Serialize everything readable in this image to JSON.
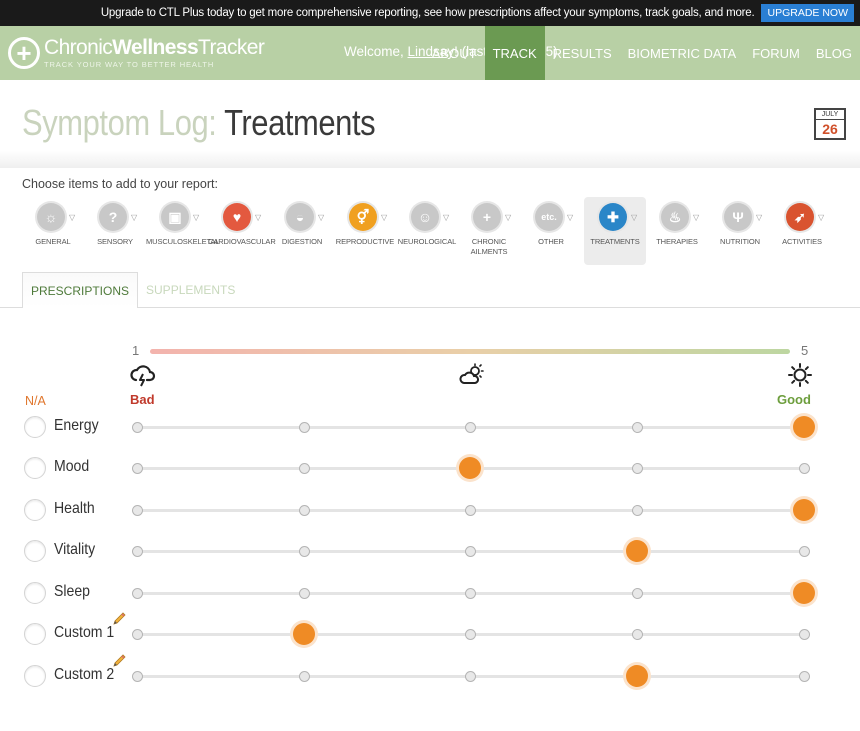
{
  "promo": {
    "text": "Upgrade to CTL Plus today to get more comprehensive reporting, see how prescriptions affect your symptoms, track goals, and more.",
    "button": "UPGRADE NOW"
  },
  "header": {
    "logo_part1": "Chronic",
    "logo_part2": "Wellness",
    "logo_part3": "Tracker",
    "tagline": "TRACK YOUR WAY TO BETTER HEALTH",
    "welcome_prefix": "Welcome, ",
    "user_name": "Lindsay",
    "welcome_suffix": "! (last login: 2/15)",
    "nav": [
      {
        "label": "ABOUT"
      },
      {
        "label": "TRACK"
      },
      {
        "label": "RESULTS"
      },
      {
        "label": "BIOMETRIC DATA"
      },
      {
        "label": "FORUM"
      },
      {
        "label": "BLOG"
      }
    ]
  },
  "page": {
    "title_prefix": "Symptom Log:",
    "title_main": "Treatments",
    "calendar_month": "JULY",
    "calendar_day": "26",
    "choose_label": "Choose items to add to your report:"
  },
  "categories": [
    {
      "label": "GENERAL",
      "icon": "sun-icon",
      "color": "#c8c8c8"
    },
    {
      "label": "SENSORY",
      "icon": "ear-icon",
      "color": "#c8c8c8"
    },
    {
      "label": "MUSCULOSKELETAL",
      "icon": "body-icon",
      "color": "#c8c8c8"
    },
    {
      "label": "CARDIOVASCULAR",
      "icon": "heart-icon",
      "color": "#e3593f"
    },
    {
      "label": "DIGESTION",
      "icon": "stomach-icon",
      "color": "#c8c8c8"
    },
    {
      "label": "REPRODUCTIVE",
      "icon": "gender-icon",
      "color": "#f0a020"
    },
    {
      "label": "NEUROLOGICAL",
      "icon": "head-icon",
      "color": "#c8c8c8"
    },
    {
      "label": "CHRONIC AILMENTS",
      "icon": "plus-icon",
      "color": "#c8c8c8"
    },
    {
      "label": "OTHER",
      "icon": "etc-icon",
      "icon_text": "etc.",
      "color": "#c8c8c8"
    },
    {
      "label": "TREATMENTS",
      "icon": "treatment-icon",
      "color": "#2a86c8"
    },
    {
      "label": "THERAPIES",
      "icon": "therapy-icon",
      "color": "#c8c8c8"
    },
    {
      "label": "NUTRITION",
      "icon": "fork-knife-icon",
      "color": "#c8c8c8"
    },
    {
      "label": "ACTIVITIES",
      "icon": "runner-icon",
      "color": "#d9532f"
    }
  ],
  "tabs": [
    {
      "label": "PRESCRIPTIONS",
      "active": true
    },
    {
      "label": "SUPPLEMENTS",
      "active": false
    }
  ],
  "scale": {
    "min": "1",
    "max": "5",
    "bad_label": "Bad",
    "good_label": "Good",
    "na_label": "N/A"
  },
  "rows": [
    {
      "label": "Energy",
      "value": 5,
      "editable": false
    },
    {
      "label": "Mood",
      "value": 3,
      "editable": false
    },
    {
      "label": "Health",
      "value": 5,
      "editable": false
    },
    {
      "label": "Vitality",
      "value": 4,
      "editable": false
    },
    {
      "label": "Sleep",
      "value": 5,
      "editable": false
    },
    {
      "label": "Custom 1",
      "value": 2,
      "editable": true
    },
    {
      "label": "Custom 2",
      "value": 4,
      "editable": true
    }
  ],
  "colors": {
    "nav_bg": "#b8d0a5",
    "nav_active": "#6b9a52",
    "accent_orange": "#ef8b25",
    "bad_red": "#c0392b",
    "good_green": "#6d9e3d"
  }
}
